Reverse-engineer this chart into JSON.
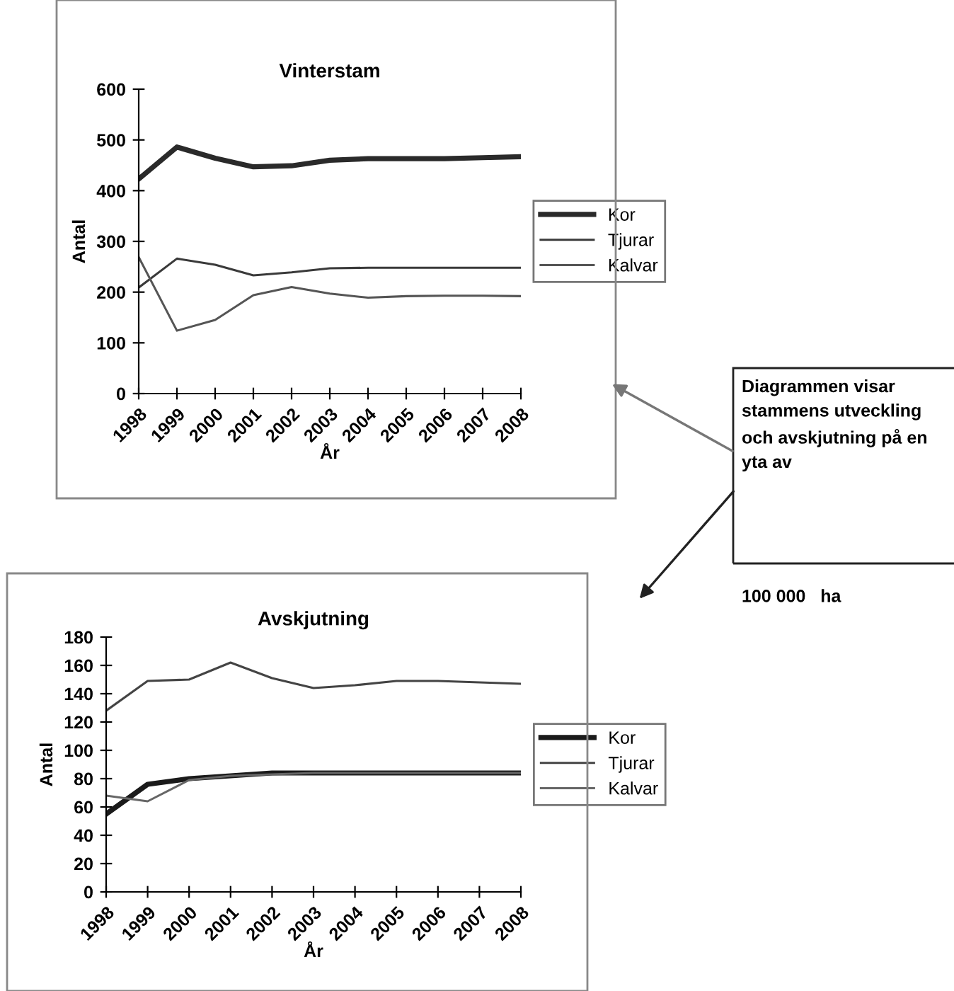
{
  "chart_data": [
    {
      "type": "line",
      "title": "Vinterstam",
      "xlabel": "År",
      "ylabel": "Antal",
      "categories": [
        "1998",
        "1999",
        "2000",
        "2001",
        "2002",
        "2003",
        "2004",
        "2005",
        "2006",
        "2007",
        "2008"
      ],
      "ylim": [
        0,
        600
      ],
      "yticks": [
        0,
        100,
        200,
        300,
        400,
        500,
        600
      ],
      "grid": false,
      "legend": "right",
      "marker": "none",
      "line_style": "solid",
      "series": [
        {
          "name": "Kor",
          "color": "#2a2a2a",
          "values": [
            423,
            486,
            464,
            447,
            449,
            460,
            463,
            463,
            463,
            465,
            467
          ]
        },
        {
          "name": "Tjurar",
          "color": "#3a3a3a",
          "values": [
            209,
            266,
            254,
            233,
            239,
            247,
            248,
            248,
            248,
            248,
            248
          ]
        },
        {
          "name": "Kalvar",
          "color": "#555555",
          "values": [
            269,
            124,
            145,
            194,
            210,
            197,
            189,
            192,
            193,
            193,
            192
          ]
        }
      ],
      "annotations": [
        "Diagrammen visar stammens utveckling och avskjutning på en yta av",
        "100 000   ha"
      ]
    },
    {
      "type": "line",
      "title": "Avskjutning",
      "xlabel": "År",
      "ylabel": "Antal",
      "categories": [
        "1998",
        "1999",
        "2000",
        "2001",
        "2002",
        "2003",
        "2004",
        "2005",
        "2006",
        "2007",
        "2008"
      ],
      "ylim": [
        0,
        180
      ],
      "yticks": [
        0,
        20,
        40,
        60,
        80,
        100,
        120,
        140,
        160,
        180
      ],
      "grid": false,
      "legend": "right",
      "marker": "none",
      "line_style": "solid",
      "series": [
        {
          "name": "Kor",
          "color": "#1a1a1a",
          "values": [
            55,
            76,
            80,
            82,
            84,
            84,
            84,
            84,
            84,
            84,
            84
          ]
        },
        {
          "name": "Tjurar",
          "color": "#444444",
          "values": [
            128,
            149,
            150,
            162,
            151,
            144,
            146,
            149,
            149,
            148,
            147
          ]
        },
        {
          "name": "Kalvar",
          "color": "#666666",
          "values": [
            68,
            64,
            79,
            82,
            83,
            84,
            84,
            84,
            84,
            84,
            84
          ]
        }
      ]
    }
  ]
}
